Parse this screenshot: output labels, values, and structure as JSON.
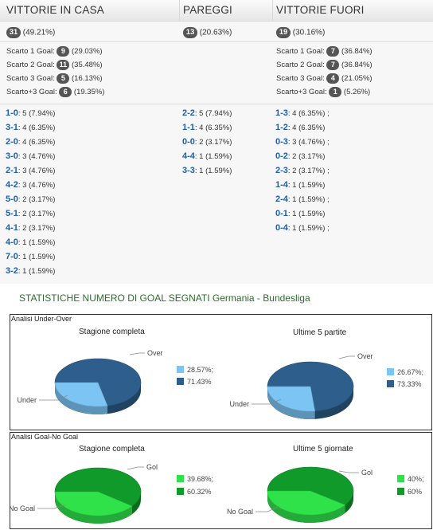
{
  "stats": {
    "headers": [
      "VITTORIE IN CASA",
      "PAREGGI",
      "VITTORIE FUORI"
    ],
    "totals": [
      {
        "count": "31",
        "pct": "(49.21%)"
      },
      {
        "count": "13",
        "pct": "(20.63%)"
      },
      {
        "count": "19",
        "pct": "(30.16%)"
      }
    ],
    "scarti_home": [
      {
        "label": "Scarto 1 Goal:",
        "count": "9",
        "pct": "(29.03%)"
      },
      {
        "label": "Scarto 2 Goal:",
        "count": "11",
        "pct": "(35.48%)"
      },
      {
        "label": "Scarto 3 Goal:",
        "count": "5",
        "pct": "(16.13%)"
      },
      {
        "label": "Scarto+3 Goal:",
        "count": "6",
        "pct": "(19.35%)"
      }
    ],
    "scarti_away": [
      {
        "label": "Scarto 1 Goal:",
        "count": "7",
        "pct": "(36.84%)"
      },
      {
        "label": "Scarto 2 Goal:",
        "count": "7",
        "pct": "(36.84%)"
      },
      {
        "label": "Scarto 3 Goal:",
        "count": "4",
        "pct": "(21.05%)"
      },
      {
        "label": "Scarto+3 Goal:",
        "count": "1",
        "pct": "(5.26%)"
      }
    ],
    "results_home": [
      {
        "score": "1-0",
        "text": ": 5 (7.94%)"
      },
      {
        "score": "3-1",
        "text": ": 4 (6.35%)"
      },
      {
        "score": "2-0",
        "text": ": 4 (6.35%)"
      },
      {
        "score": "3-0",
        "text": ": 3 (4.76%)"
      },
      {
        "score": "2-1",
        "text": ": 3 (4.76%)"
      },
      {
        "score": "4-2",
        "text": ": 3 (4.76%)"
      },
      {
        "score": "5-0",
        "text": ": 2 (3.17%)"
      },
      {
        "score": "5-1",
        "text": ": 2 (3.17%)"
      },
      {
        "score": "4-1",
        "text": ": 2 (3.17%)"
      },
      {
        "score": "4-0",
        "text": ": 1 (1.59%)"
      },
      {
        "score": "7-0",
        "text": ": 1 (1.59%)"
      },
      {
        "score": "3-2",
        "text": ": 1 (1.59%)"
      }
    ],
    "results_draw": [
      {
        "score": "2-2",
        "text": ": 5 (7.94%)"
      },
      {
        "score": "1-1",
        "text": ": 4 (6.35%)"
      },
      {
        "score": "0-0",
        "text": ": 2 (3.17%)"
      },
      {
        "score": "4-4",
        "text": ": 1 (1.59%)"
      },
      {
        "score": "3-3",
        "text": ": 1 (1.59%)"
      }
    ],
    "results_away": [
      {
        "score": "1-3",
        "text": ": 4 (6.35%) ;"
      },
      {
        "score": "1-2",
        "text": ": 4 (6.35%)"
      },
      {
        "score": "0-3",
        "text": ": 3 (4.76%) ;"
      },
      {
        "score": "0-2",
        "text": ": 2 (3.17%)"
      },
      {
        "score": "2-3",
        "text": ": 2 (3.17%) ;"
      },
      {
        "score": "1-4",
        "text": ": 1 (1.59%)"
      },
      {
        "score": "2-4",
        "text": ": 1 (1.59%) ;"
      },
      {
        "score": "0-1",
        "text": ": 1 (1.59%)"
      },
      {
        "score": "0-4",
        "text": ": 1 (1.59%) ;"
      }
    ]
  },
  "lower": {
    "section_title": "STATISTICHE NUMERO DI GOAL SEGNATI Germania - Bundesliga",
    "panel1_title": "Analisi Under-Over",
    "panel2_title": "Analisi Goal-No Goal"
  },
  "colors": {
    "over": "#2e5f8c",
    "under": "#7cc4f4",
    "gol": "#0f9a2a",
    "nogol": "#2fe24a",
    "score_blue": "#1f5fa8",
    "title_green": "#2d6b2d"
  },
  "chart_data": [
    {
      "type": "pie",
      "title": "Stagione completa",
      "categories": [
        "Under",
        "Over"
      ],
      "values": [
        28.57,
        71.43
      ],
      "legend": [
        "28.57%;",
        "71.43%"
      ]
    },
    {
      "type": "pie",
      "title": "Ultime 5 partite",
      "categories": [
        "Under",
        "Over"
      ],
      "values": [
        26.67,
        73.33
      ],
      "legend": [
        "26.67%;",
        "73.33%"
      ]
    },
    {
      "type": "pie",
      "title": "Stagione completa",
      "categories": [
        "No Goal",
        "Gol"
      ],
      "values": [
        39.68,
        60.32
      ],
      "legend": [
        "39.68%;",
        "60.32%"
      ]
    },
    {
      "type": "pie",
      "title": "Ultime 5 giornate",
      "categories": [
        "No Goal",
        "Gol"
      ],
      "values": [
        40,
        60
      ],
      "legend": [
        "40%;",
        "60%"
      ]
    }
  ]
}
